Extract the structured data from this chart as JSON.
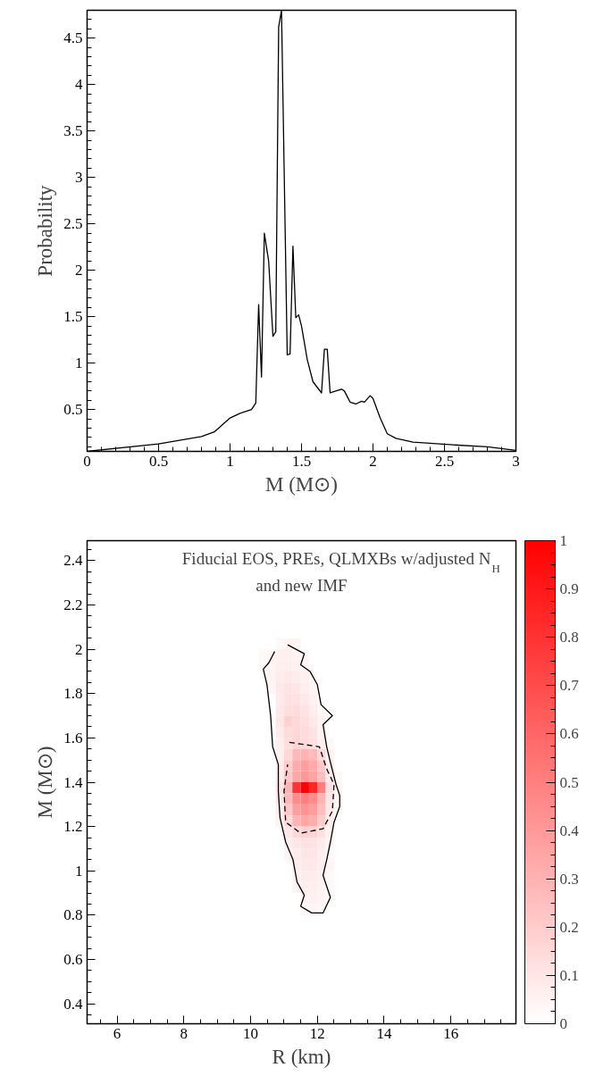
{
  "chart_data": [
    {
      "type": "line",
      "xlabel": "M (M⊙)",
      "ylabel": "Probability",
      "color": "#000000",
      "grid": false,
      "line_style": "solid",
      "x": [
        0,
        0.5,
        0.8,
        0.89,
        1.0,
        1.07,
        1.15,
        1.18,
        1.2,
        1.22,
        1.24,
        1.27,
        1.3,
        1.32,
        1.34,
        1.36,
        1.4,
        1.42,
        1.44,
        1.46,
        1.48,
        1.5,
        1.54,
        1.58,
        1.64,
        1.66,
        1.68,
        1.7,
        1.72,
        1.78,
        1.8,
        1.84,
        1.88,
        1.92,
        1.94,
        1.98,
        2.0,
        2.05,
        2.1,
        2.16,
        2.28,
        2.56,
        2.8,
        3.0
      ],
      "values": [
        0.05,
        0.13,
        0.21,
        0.26,
        0.41,
        0.46,
        0.5,
        0.57,
        1.63,
        0.85,
        2.4,
        2.1,
        1.29,
        1.34,
        4.62,
        4.8,
        1.09,
        1.1,
        2.26,
        1.49,
        1.52,
        1.4,
        1.04,
        0.8,
        0.68,
        1.15,
        1.15,
        0.68,
        0.69,
        0.72,
        0.7,
        0.58,
        0.56,
        0.59,
        0.58,
        0.65,
        0.62,
        0.41,
        0.24,
        0.19,
        0.15,
        0.12,
        0.1,
        0.06
      ],
      "xlim": [
        0,
        3
      ],
      "ylim": [
        0.05,
        4.8
      ],
      "xticks": [
        0,
        0.5,
        1,
        1.5,
        2,
        2.5,
        3
      ],
      "yticks": [
        0.5,
        1,
        1.5,
        2,
        2.5,
        3,
        3.5,
        4,
        4.5
      ]
    },
    {
      "type": "heatmap",
      "xlabel": "R (km)",
      "ylabel": "M (M⊙)",
      "color": "#ff0000",
      "grid": false,
      "annotations": [
        "Fiducial EOS, PREs, QLMXBs w/adjusted N$_{H}$",
        "and new IMF"
      ],
      "xlim": [
        5.1,
        17.95
      ],
      "ylim": [
        0.31,
        2.49
      ],
      "xticks": [
        6,
        8,
        10,
        12,
        14,
        16
      ],
      "yticks": [
        0.4,
        0.6,
        0.8,
        1,
        1.2,
        1.4,
        1.6,
        1.8,
        2,
        2.2,
        2.4
      ],
      "clim": [
        0,
        1
      ],
      "cticks": [
        0,
        0.1,
        0.2,
        0.3,
        0.4,
        0.5,
        0.6,
        0.7,
        0.8,
        0.9,
        1
      ],
      "x": [
        10.125,
        10.375,
        10.625,
        10.875,
        11.125,
        11.375,
        11.625,
        11.875,
        12.125,
        12.375,
        12.625,
        12.875
      ],
      "y": [
        2.025,
        1.975,
        1.925,
        1.875,
        1.825,
        1.775,
        1.725,
        1.675,
        1.625,
        1.575,
        1.525,
        1.475,
        1.425,
        1.375,
        1.325,
        1.275,
        1.225,
        1.175,
        1.125,
        1.075,
        1.025,
        0.975,
        0.925,
        0.875,
        0.825
      ],
      "cells": [
        [
          null,
          null,
          null,
          0.03,
          0.05,
          0.04,
          null,
          null,
          null,
          null,
          null,
          null
        ],
        [
          null,
          0.03,
          0.04,
          0.06,
          0.06,
          0.05,
          0.03,
          null,
          null,
          null,
          null,
          null
        ],
        [
          null,
          0.03,
          0.05,
          0.07,
          0.07,
          0.06,
          0.04,
          null,
          null,
          null,
          null,
          null
        ],
        [
          null,
          null,
          0.05,
          0.08,
          0.09,
          0.08,
          0.06,
          0.03,
          null,
          null,
          null,
          null
        ],
        [
          null,
          null,
          0.04,
          0.09,
          0.11,
          0.1,
          0.07,
          0.04,
          null,
          null,
          null,
          null
        ],
        [
          null,
          null,
          null,
          0.08,
          0.12,
          0.12,
          0.09,
          0.05,
          null,
          null,
          null,
          null
        ],
        [
          null,
          null,
          null,
          0.09,
          0.13,
          0.14,
          0.11,
          0.07,
          0.03,
          null,
          null,
          null
        ],
        [
          null,
          null,
          null,
          0.1,
          0.18,
          0.15,
          0.13,
          0.09,
          0.04,
          null,
          null,
          null
        ],
        [
          null,
          null,
          null,
          0.08,
          0.14,
          0.16,
          0.14,
          0.11,
          0.05,
          null,
          null,
          null
        ],
        [
          null,
          null,
          null,
          0.07,
          0.13,
          0.17,
          0.15,
          0.12,
          0.06,
          0.03,
          null,
          null
        ],
        [
          null,
          null,
          null,
          0.07,
          0.16,
          0.28,
          0.3,
          0.27,
          0.15,
          0.05,
          null,
          null
        ],
        [
          null,
          null,
          null,
          0.08,
          0.2,
          0.33,
          0.38,
          0.33,
          0.22,
          0.07,
          null,
          null
        ],
        [
          null,
          null,
          null,
          0.08,
          0.22,
          0.35,
          0.4,
          0.36,
          0.25,
          0.08,
          0.03,
          null
        ],
        [
          null,
          null,
          null,
          0.1,
          0.3,
          0.8,
          1,
          0.85,
          0.5,
          0.12,
          0.04,
          null
        ],
        [
          null,
          null,
          null,
          0.09,
          0.28,
          0.45,
          0.5,
          0.45,
          0.3,
          0.1,
          0.04,
          null
        ],
        [
          null,
          null,
          null,
          0.07,
          0.22,
          0.38,
          0.42,
          0.38,
          0.26,
          0.09,
          0.03,
          null
        ],
        [
          null,
          null,
          null,
          0.05,
          0.15,
          0.3,
          0.35,
          0.32,
          0.2,
          0.07,
          null,
          null
        ],
        [
          null,
          null,
          null,
          null,
          0.1,
          0.15,
          0.18,
          0.17,
          0.12,
          0.05,
          null,
          null
        ],
        [
          null,
          null,
          null,
          null,
          0.07,
          0.1,
          0.12,
          0.11,
          0.08,
          0.04,
          null,
          null
        ],
        [
          null,
          null,
          null,
          null,
          0.05,
          0.08,
          0.1,
          0.1,
          0.07,
          0.03,
          null,
          null
        ],
        [
          null,
          null,
          null,
          null,
          null,
          0.07,
          0.09,
          0.09,
          0.07,
          0.04,
          null,
          null
        ],
        [
          null,
          null,
          null,
          null,
          null,
          0.06,
          0.08,
          0.08,
          0.06,
          0.03,
          null,
          null
        ],
        [
          null,
          null,
          null,
          null,
          null,
          0.05,
          0.07,
          0.07,
          0.05,
          0.03,
          null,
          null
        ],
        [
          null,
          null,
          null,
          null,
          null,
          null,
          0.05,
          0.06,
          0.05,
          0.03,
          null,
          null
        ],
        [
          null,
          null,
          null,
          null,
          null,
          null,
          0.03,
          0.04,
          0.03,
          null,
          null,
          null
        ]
      ],
      "series": [
        {
          "type": "line",
          "color": "#000000",
          "line_style": "solid",
          "x": [
            11.11,
            11.61,
            11.5,
            11.78,
            12.0,
            12.11,
            12.45,
            12.17,
            12.28,
            12.39,
            12.56,
            12.67,
            12.67,
            12.5,
            12.39,
            12.28,
            12.17,
            12.39,
            12.17,
            11.83,
            11.5,
            11.61,
            11.39,
            11.27,
            11.05,
            10.88,
            10.83,
            10.83,
            10.66,
            10.6,
            10.49,
            10.38,
            10.55,
            10.72
          ],
          "values": [
            2.02,
            1.98,
            1.93,
            1.9,
            1.84,
            1.75,
            1.7,
            1.66,
            1.56,
            1.49,
            1.39,
            1.34,
            1.29,
            1.22,
            1.13,
            1.05,
            0.98,
            0.88,
            0.81,
            0.81,
            0.84,
            0.89,
            0.95,
            1.05,
            1.13,
            1.24,
            1.36,
            1.48,
            1.56,
            1.7,
            1.84,
            1.91,
            1.94,
            1.99
          ]
        },
        {
          "type": "line",
          "color": "#000000",
          "line_style": "dashed",
          "x": [
            11.16,
            12.06,
            12.28,
            12.5,
            12.45,
            12.17,
            11.5,
            11.05,
            11.0,
            11.11
          ],
          "values": [
            1.58,
            1.56,
            1.46,
            1.39,
            1.27,
            1.19,
            1.17,
            1.22,
            1.36,
            1.48
          ]
        }
      ]
    }
  ]
}
